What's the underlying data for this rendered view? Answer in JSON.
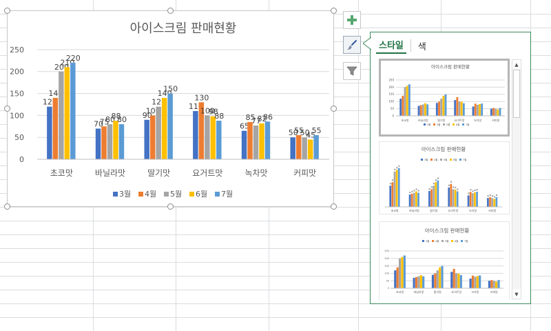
{
  "chart": {
    "title": "아이스크림 판매현황",
    "legend": [
      "3월",
      "4월",
      "5월",
      "6월",
      "7월"
    ]
  },
  "chart_data": {
    "type": "bar",
    "title": "아이스크림 판매현황",
    "categories": [
      "초코맛",
      "바닐라맛",
      "딸기맛",
      "요거트맛",
      "녹차맛",
      "커피맛"
    ],
    "series": [
      {
        "name": "3월",
        "values": [
          120,
          70,
          90,
          110,
          65,
          50
        ]
      },
      {
        "name": "4월",
        "values": [
          140,
          75,
          100,
          130,
          85,
          55
        ]
      },
      {
        "name": "5월",
        "values": [
          200,
          80,
          120,
          100,
          77,
          50
        ]
      },
      {
        "name": "6월",
        "values": [
          210,
          88,
          140,
          98,
          82,
          45
        ]
      },
      {
        "name": "7월",
        "values": [
          220,
          80,
          150,
          88,
          86,
          55
        ]
      }
    ],
    "yticks": [
      0,
      50,
      100,
      150,
      200,
      250
    ],
    "ylim": [
      0,
      250
    ],
    "grid": true,
    "legend_position": "bottom",
    "colors": [
      "#4472c4",
      "#ed7d31",
      "#a5a5a5",
      "#ffc000",
      "#5b9bd5"
    ]
  },
  "side_buttons": [
    {
      "name": "chart-elements-button",
      "icon": "plus-icon"
    },
    {
      "name": "chart-styles-button",
      "icon": "paintbrush-icon"
    },
    {
      "name": "chart-filters-button",
      "icon": "funnel-icon"
    }
  ],
  "panel": {
    "tabs": {
      "style": "스타일",
      "color": "색"
    }
  },
  "styles_preview": {
    "titles": [
      "아이스크림 판매현황",
      "아이스크림 판매현황",
      "아이스크림 판매현황"
    ],
    "legend": [
      "3월",
      "4월",
      "5월",
      "6월",
      "7월"
    ],
    "categories": [
      "초코맛",
      "바닐라맛",
      "딸기맛",
      "요거트맛",
      "녹차맛",
      "커피맛"
    ]
  },
  "colors": {
    "accent": "#217346",
    "panel_border": "#3b8a5a",
    "gridline": "#d9d9d9",
    "plus_icon": "#56a86f"
  }
}
